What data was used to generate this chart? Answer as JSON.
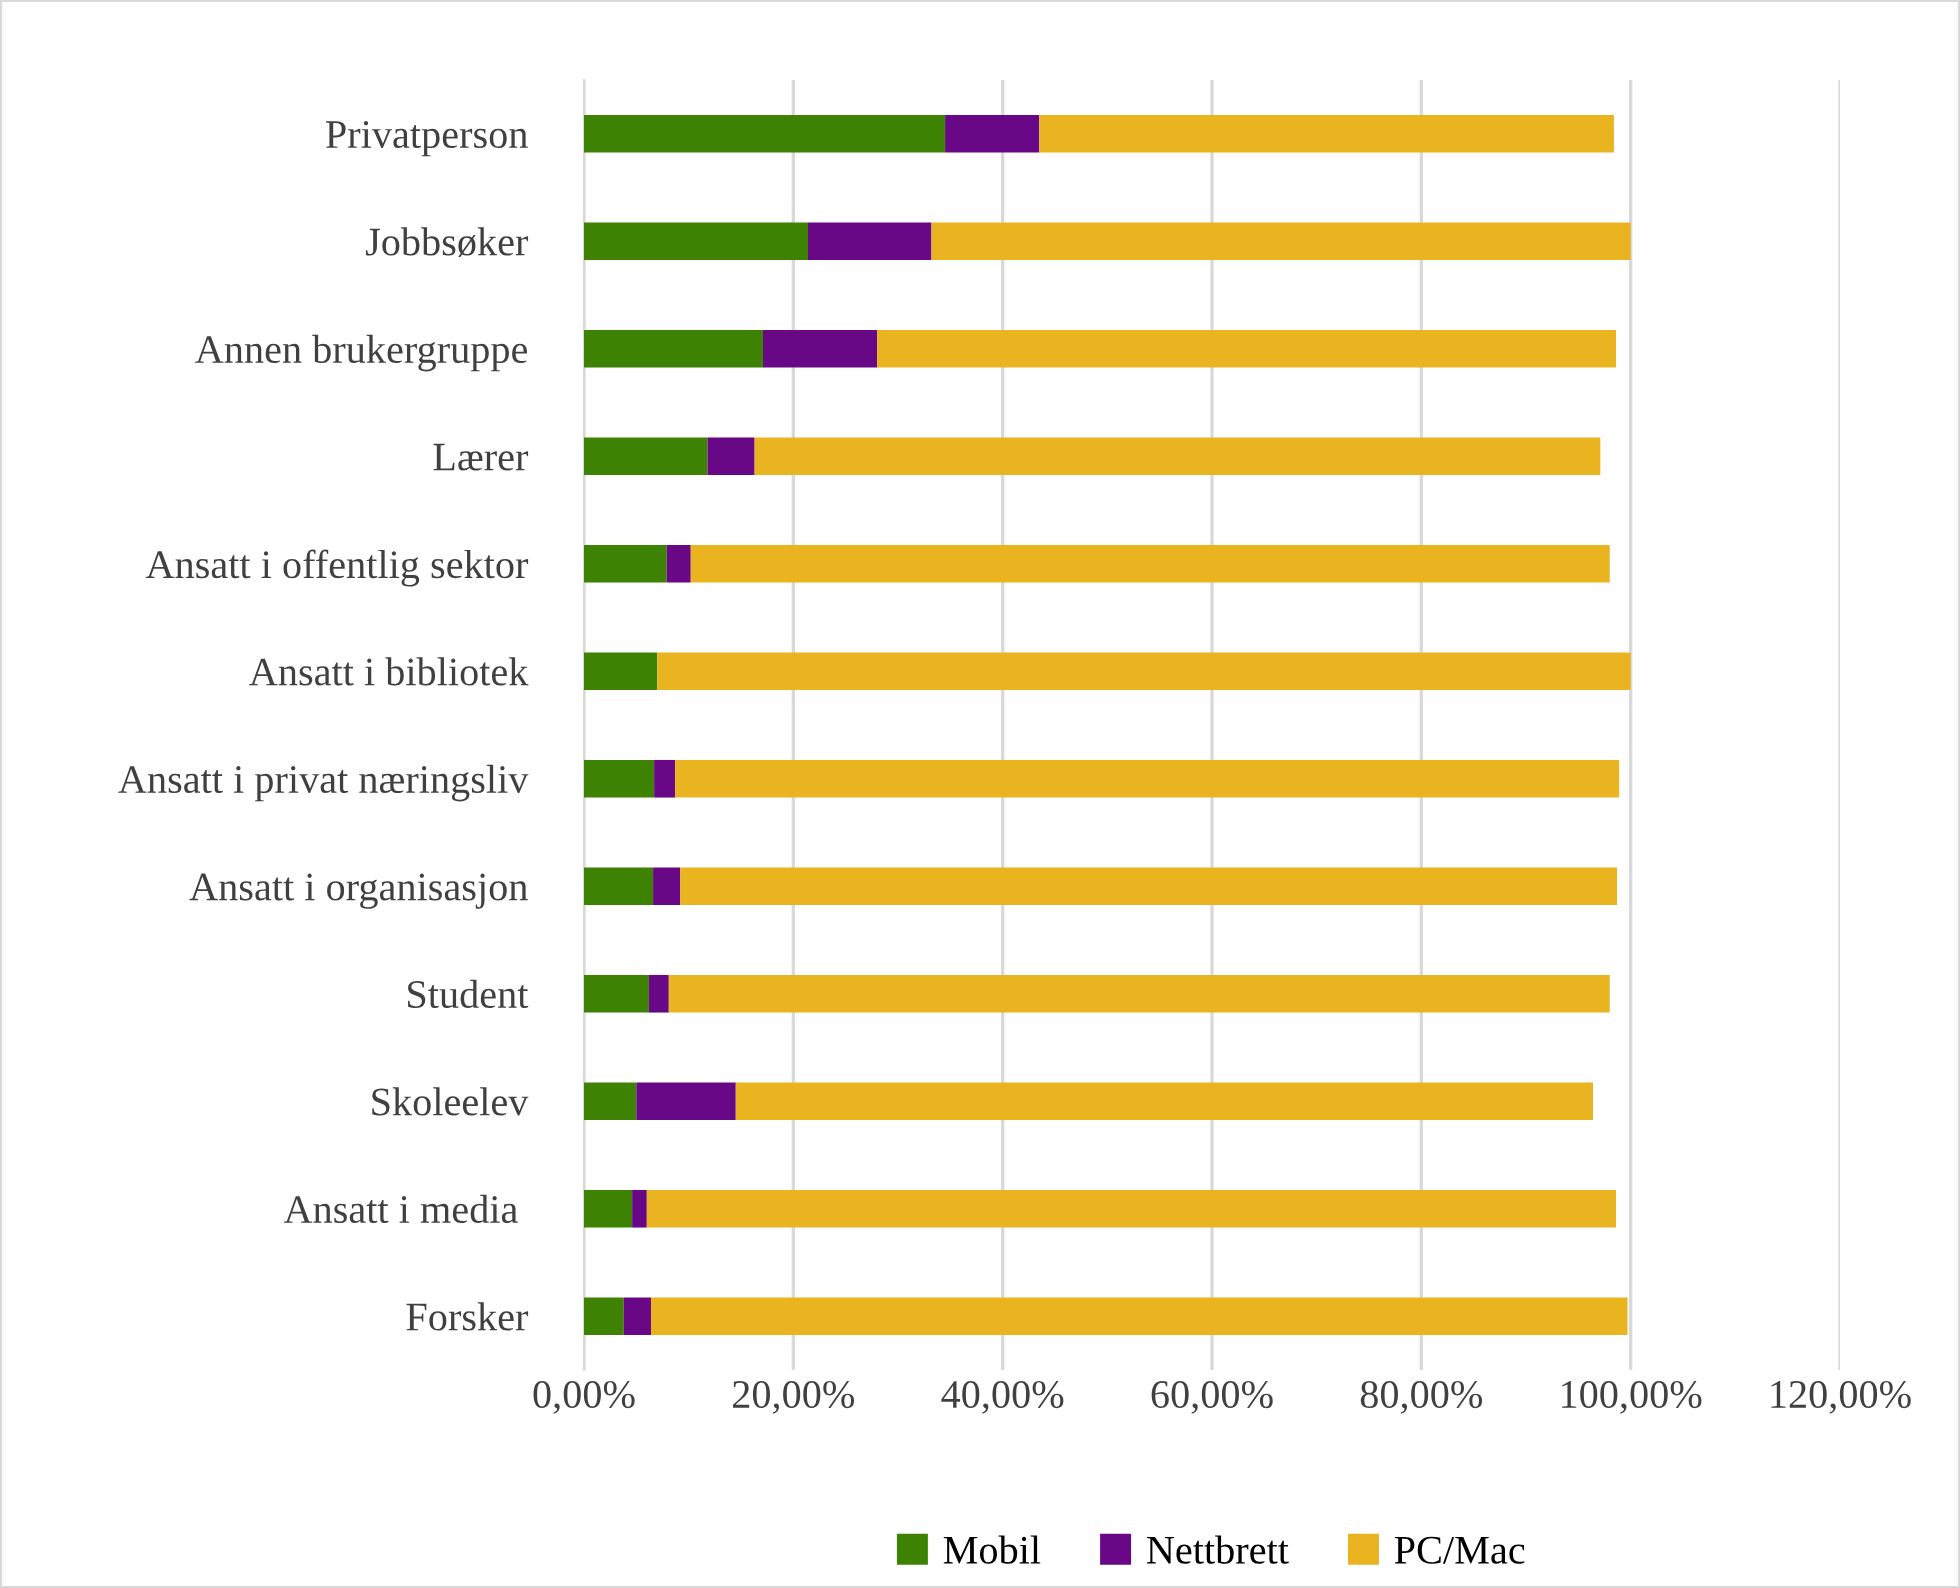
{
  "chart_data": {
    "type": "bar",
    "orientation": "horizontal",
    "stacked": true,
    "categories": [
      "Privatperson",
      "Jobbsøker",
      "Annen brukergruppe",
      "Lærer",
      "Ansatt i offentlig sektor",
      "Ansatt i bibliotek",
      "Ansatt i privat næringsliv",
      "Ansatt i organisasjon",
      "Student",
      "Skoleelev",
      "Ansatt i media ",
      "Forsker"
    ],
    "series": [
      {
        "name": "Mobil",
        "color": "#3d8203",
        "values": [
          34.5,
          21.4,
          17.1,
          11.8,
          7.9,
          7.0,
          6.7,
          6.6,
          6.2,
          5.0,
          4.6,
          3.8
        ]
      },
      {
        "name": "Nettbrett",
        "color": "#680886",
        "values": [
          9.0,
          11.8,
          10.9,
          4.5,
          2.3,
          0,
          2.0,
          2.6,
          1.9,
          9.5,
          1.4,
          2.6
        ]
      },
      {
        "name": "PC/Mac",
        "color": "#eab320",
        "values": [
          54.9,
          66.8,
          70.6,
          80.8,
          87.8,
          93.0,
          90.2,
          89.5,
          89.9,
          81.9,
          92.6,
          93.3
        ]
      }
    ],
    "xlim": [
      0,
      120
    ],
    "xticks": [
      {
        "value": 0,
        "label": "0,00%"
      },
      {
        "value": 20,
        "label": "20,00%"
      },
      {
        "value": 40,
        "label": "40,00%"
      },
      {
        "value": 60,
        "label": "60,00%"
      },
      {
        "value": 80,
        "label": "80,00%"
      },
      {
        "value": 100,
        "label": "100,00%"
      },
      {
        "value": 120,
        "label": "120,00%"
      }
    ],
    "grid": "x",
    "legend": "bottom"
  }
}
